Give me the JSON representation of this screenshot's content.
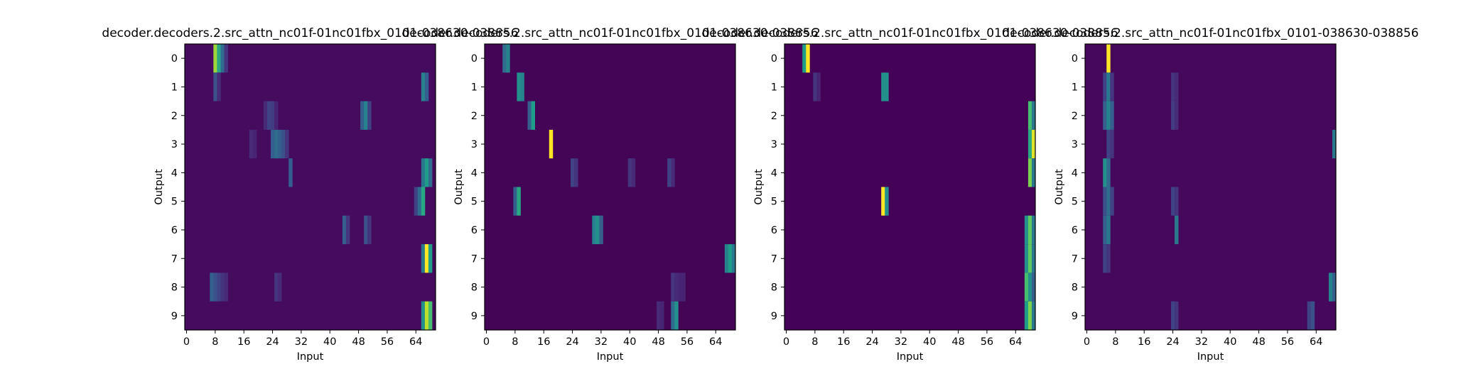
{
  "figure": {
    "colormap": "viridis",
    "colormap_stops": [
      "#440154",
      "#482878",
      "#3e4989",
      "#31688e",
      "#26828e",
      "#1f9e89",
      "#35b779",
      "#6ece58",
      "#b5de2b",
      "#fde725"
    ]
  },
  "chart_data": [
    {
      "type": "heatmap",
      "title": "decoder.decoders.2.src_attn_nc01f-01nc01fbx_0101-038630-038856",
      "xlabel": "Input",
      "ylabel": "Output",
      "rows": 10,
      "cols": 70,
      "xticks": [
        0,
        8,
        16,
        24,
        32,
        40,
        48,
        56,
        64
      ],
      "yticks": [
        0,
        1,
        2,
        3,
        4,
        5,
        6,
        7,
        8,
        9
      ],
      "grid": false,
      "background_value": 0.03,
      "bars": [
        {
          "row": 0,
          "cols": [
            8,
            9
          ],
          "values": [
            0.85,
            0.6
          ]
        },
        {
          "row": 0,
          "cols": [
            10,
            11
          ],
          "values": [
            0.35,
            0.15
          ]
        },
        {
          "row": 1,
          "cols": [
            8,
            9
          ],
          "values": [
            0.25,
            0.12
          ]
        },
        {
          "row": 1,
          "cols": [
            66,
            67
          ],
          "values": [
            0.45,
            0.3
          ]
        },
        {
          "row": 2,
          "cols": [
            22,
            23,
            24,
            25
          ],
          "values": [
            0.12,
            0.2,
            0.18,
            0.1
          ]
        },
        {
          "row": 2,
          "cols": [
            49,
            50,
            51
          ],
          "values": [
            0.3,
            0.45,
            0.2
          ]
        },
        {
          "row": 3,
          "cols": [
            24,
            25,
            26,
            27,
            28
          ],
          "values": [
            0.3,
            0.35,
            0.3,
            0.25,
            0.15
          ]
        },
        {
          "row": 3,
          "cols": [
            18,
            19
          ],
          "values": [
            0.12,
            0.1
          ]
        },
        {
          "row": 4,
          "cols": [
            29
          ],
          "values": [
            0.3
          ]
        },
        {
          "row": 4,
          "cols": [
            66,
            67,
            68
          ],
          "values": [
            0.4,
            0.55,
            0.35
          ]
        },
        {
          "row": 5,
          "cols": [
            64,
            65,
            66
          ],
          "values": [
            0.2,
            0.35,
            0.6
          ]
        },
        {
          "row": 6,
          "cols": [
            44,
            45
          ],
          "values": [
            0.3,
            0.15
          ]
        },
        {
          "row": 6,
          "cols": [
            50,
            51
          ],
          "values": [
            0.25,
            0.15
          ]
        },
        {
          "row": 7,
          "cols": [
            66,
            67,
            68
          ],
          "values": [
            0.4,
            1.0,
            0.55
          ]
        },
        {
          "row": 8,
          "cols": [
            7,
            8,
            9,
            10,
            11
          ],
          "values": [
            0.3,
            0.25,
            0.2,
            0.15,
            0.12
          ]
        },
        {
          "row": 8,
          "cols": [
            25,
            26
          ],
          "values": [
            0.15,
            0.12
          ]
        },
        {
          "row": 9,
          "cols": [
            66,
            67,
            68
          ],
          "values": [
            0.5,
            0.9,
            0.7
          ]
        }
      ]
    },
    {
      "type": "heatmap",
      "title": "decoder.decoders.2.src_attn_nc01f-01nc01fbx_0101-038630-038856",
      "xlabel": "Input",
      "ylabel": "Output",
      "rows": 10,
      "cols": 70,
      "xticks": [
        0,
        8,
        16,
        24,
        32,
        40,
        48,
        56,
        64
      ],
      "yticks": [
        0,
        1,
        2,
        3,
        4,
        5,
        6,
        7,
        8,
        9
      ],
      "grid": false,
      "background_value": 0.01,
      "bars": [
        {
          "row": 0,
          "cols": [
            5,
            6
          ],
          "values": [
            0.35,
            0.45
          ]
        },
        {
          "row": 1,
          "cols": [
            9,
            10
          ],
          "values": [
            0.5,
            0.45
          ]
        },
        {
          "row": 2,
          "cols": [
            12,
            13
          ],
          "values": [
            0.3,
            0.55
          ]
        },
        {
          "row": 3,
          "cols": [
            18
          ],
          "values": [
            1.0
          ]
        },
        {
          "row": 4,
          "cols": [
            24,
            25
          ],
          "values": [
            0.2,
            0.15
          ]
        },
        {
          "row": 4,
          "cols": [
            40,
            41
          ],
          "values": [
            0.15,
            0.12
          ]
        },
        {
          "row": 4,
          "cols": [
            51,
            52
          ],
          "values": [
            0.2,
            0.12
          ]
        },
        {
          "row": 5,
          "cols": [
            8,
            9
          ],
          "values": [
            0.3,
            0.6
          ]
        },
        {
          "row": 6,
          "cols": [
            30,
            31,
            32
          ],
          "values": [
            0.45,
            0.5,
            0.3
          ]
        },
        {
          "row": 7,
          "cols": [
            67,
            68,
            69
          ],
          "values": [
            0.45,
            0.55,
            0.4
          ]
        },
        {
          "row": 8,
          "cols": [
            52,
            53,
            54,
            55
          ],
          "values": [
            0.15,
            0.12,
            0.1,
            0.1
          ]
        },
        {
          "row": 9,
          "cols": [
            52,
            53
          ],
          "values": [
            0.35,
            0.5
          ]
        },
        {
          "row": 9,
          "cols": [
            48,
            49
          ],
          "values": [
            0.12,
            0.1
          ]
        }
      ]
    },
    {
      "type": "heatmap",
      "title": "decoder.decoders.2.src_attn_nc01f-01nc01fbx_0101-038630-038856",
      "xlabel": "Input",
      "ylabel": "Output",
      "rows": 10,
      "cols": 70,
      "xticks": [
        0,
        8,
        16,
        24,
        32,
        40,
        48,
        56,
        64
      ],
      "yticks": [
        0,
        1,
        2,
        3,
        4,
        5,
        6,
        7,
        8,
        9
      ],
      "grid": false,
      "background_value": 0.005,
      "bars": [
        {
          "row": 0,
          "cols": [
            5,
            6
          ],
          "values": [
            0.55,
            1.0
          ]
        },
        {
          "row": 1,
          "cols": [
            8,
            9
          ],
          "values": [
            0.15,
            0.1
          ]
        },
        {
          "row": 1,
          "cols": [
            27,
            28
          ],
          "values": [
            0.5,
            0.5
          ]
        },
        {
          "row": 2,
          "cols": [
            68,
            69
          ],
          "values": [
            0.7,
            0.4
          ]
        },
        {
          "row": 3,
          "cols": [
            68,
            69
          ],
          "values": [
            0.6,
            0.95
          ]
        },
        {
          "row": 4,
          "cols": [
            68,
            69
          ],
          "values": [
            0.8,
            0.4
          ]
        },
        {
          "row": 5,
          "cols": [
            27,
            28
          ],
          "values": [
            1.0,
            0.5
          ]
        },
        {
          "row": 6,
          "cols": [
            67,
            68,
            69
          ],
          "values": [
            0.5,
            0.75,
            0.4
          ]
        },
        {
          "row": 7,
          "cols": [
            67,
            68,
            69
          ],
          "values": [
            0.5,
            0.75,
            0.4
          ]
        },
        {
          "row": 8,
          "cols": [
            67,
            68,
            69
          ],
          "values": [
            0.7,
            0.5,
            0.3
          ]
        },
        {
          "row": 9,
          "cols": [
            67,
            68,
            69
          ],
          "values": [
            0.55,
            0.8,
            0.4
          ]
        }
      ]
    },
    {
      "type": "heatmap",
      "title": "decoder.decoders.2.src_attn_nc01f-01nc01fbx_0101-038630-038856",
      "xlabel": "Input",
      "ylabel": "Output",
      "rows": 10,
      "cols": 70,
      "xticks": [
        0,
        8,
        16,
        24,
        32,
        40,
        48,
        56,
        64
      ],
      "yticks": [
        0,
        1,
        2,
        3,
        4,
        5,
        6,
        7,
        8,
        9
      ],
      "grid": false,
      "background_value": 0.02,
      "bars": [
        {
          "row": 0,
          "cols": [
            6
          ],
          "values": [
            1.0
          ]
        },
        {
          "row": 1,
          "cols": [
            5,
            6,
            7
          ],
          "values": [
            0.2,
            0.4,
            0.15
          ]
        },
        {
          "row": 1,
          "cols": [
            24,
            25
          ],
          "values": [
            0.15,
            0.12
          ]
        },
        {
          "row": 2,
          "cols": [
            5,
            6,
            7
          ],
          "values": [
            0.3,
            0.45,
            0.3
          ]
        },
        {
          "row": 2,
          "cols": [
            24,
            25
          ],
          "values": [
            0.18,
            0.12
          ]
        },
        {
          "row": 3,
          "cols": [
            6,
            7
          ],
          "values": [
            0.2,
            0.15
          ]
        },
        {
          "row": 3,
          "cols": [
            69
          ],
          "values": [
            0.4
          ]
        },
        {
          "row": 4,
          "cols": [
            5,
            6
          ],
          "values": [
            0.5,
            0.35
          ]
        },
        {
          "row": 5,
          "cols": [
            5,
            6,
            7
          ],
          "values": [
            0.25,
            0.35,
            0.2
          ]
        },
        {
          "row": 5,
          "cols": [
            24,
            25
          ],
          "values": [
            0.2,
            0.15
          ]
        },
        {
          "row": 6,
          "cols": [
            5,
            6
          ],
          "values": [
            0.3,
            0.4
          ]
        },
        {
          "row": 6,
          "cols": [
            25
          ],
          "values": [
            0.4
          ]
        },
        {
          "row": 7,
          "cols": [
            5,
            6
          ],
          "values": [
            0.2,
            0.15
          ]
        },
        {
          "row": 8,
          "cols": [
            68,
            69
          ],
          "values": [
            0.45,
            0.3
          ]
        },
        {
          "row": 9,
          "cols": [
            24,
            25
          ],
          "values": [
            0.2,
            0.15
          ]
        },
        {
          "row": 9,
          "cols": [
            62,
            63
          ],
          "values": [
            0.2,
            0.25
          ]
        }
      ]
    }
  ]
}
